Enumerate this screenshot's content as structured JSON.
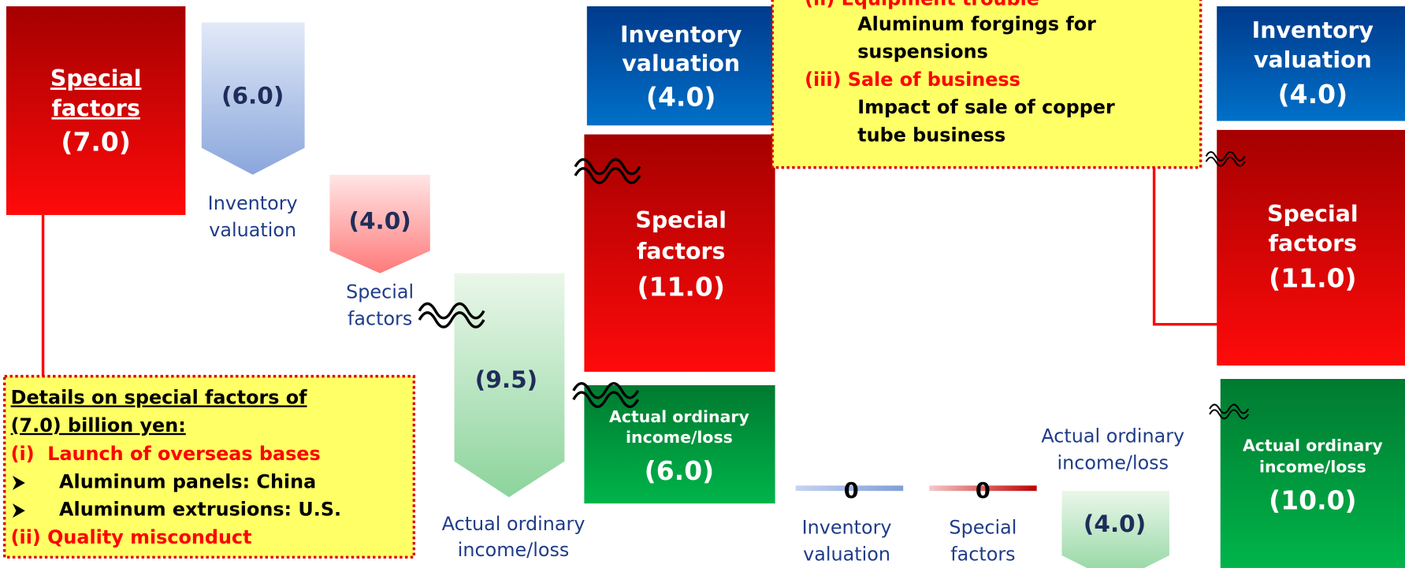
{
  "start_bar": {
    "title": "Special factors",
    "title_lines": [
      "Special",
      "factors"
    ],
    "value": "(7.0)"
  },
  "changes": [
    {
      "value": "(6.0)",
      "label": [
        "Inventory",
        "valuation"
      ]
    },
    {
      "value": "(4.0)",
      "label": [
        "Special",
        "factors"
      ]
    },
    {
      "value": "(9.5)",
      "label": [
        "Actual ordinary",
        "income/loss"
      ]
    }
  ],
  "middle_stack": [
    {
      "label": [
        "Inventory",
        "valuation"
      ],
      "value": "(4.0)"
    },
    {
      "label": [
        "Special",
        "factors"
      ],
      "value": "(11.0)"
    },
    {
      "label": [
        "Actual ordinary",
        "income/loss"
      ],
      "value": "(6.0)"
    }
  ],
  "changes2": [
    {
      "value": "0",
      "label": [
        "Inventory",
        "valuation"
      ]
    },
    {
      "value": "0",
      "label": [
        "Special",
        "factors"
      ]
    },
    {
      "value": "(4.0)",
      "label": [
        "Actual ordinary",
        "income/loss"
      ]
    }
  ],
  "right_stack": [
    {
      "label": [
        "Inventory",
        "valuation"
      ],
      "value": "(4.0)"
    },
    {
      "label": [
        "Special",
        "factors"
      ],
      "value": "(11.0)"
    },
    {
      "label": [
        "Actual ordinary",
        "income/loss"
      ],
      "value": "(10.0)"
    }
  ],
  "callout_top": {
    "lines": [
      "(ii) Equipment trouble",
      "Aluminum forgings for",
      "suspensions",
      "(iii) Sale of business",
      "Impact of sale of copper",
      "tube business"
    ]
  },
  "callout_left": {
    "lines": [
      "Details on special factors of",
      "(7.0) billion yen:",
      "(i)  Launch of overseas bases",
      "Aluminum panels: China",
      "Aluminum extrusions: U.S.",
      "(ii) Quality misconduct"
    ]
  }
}
